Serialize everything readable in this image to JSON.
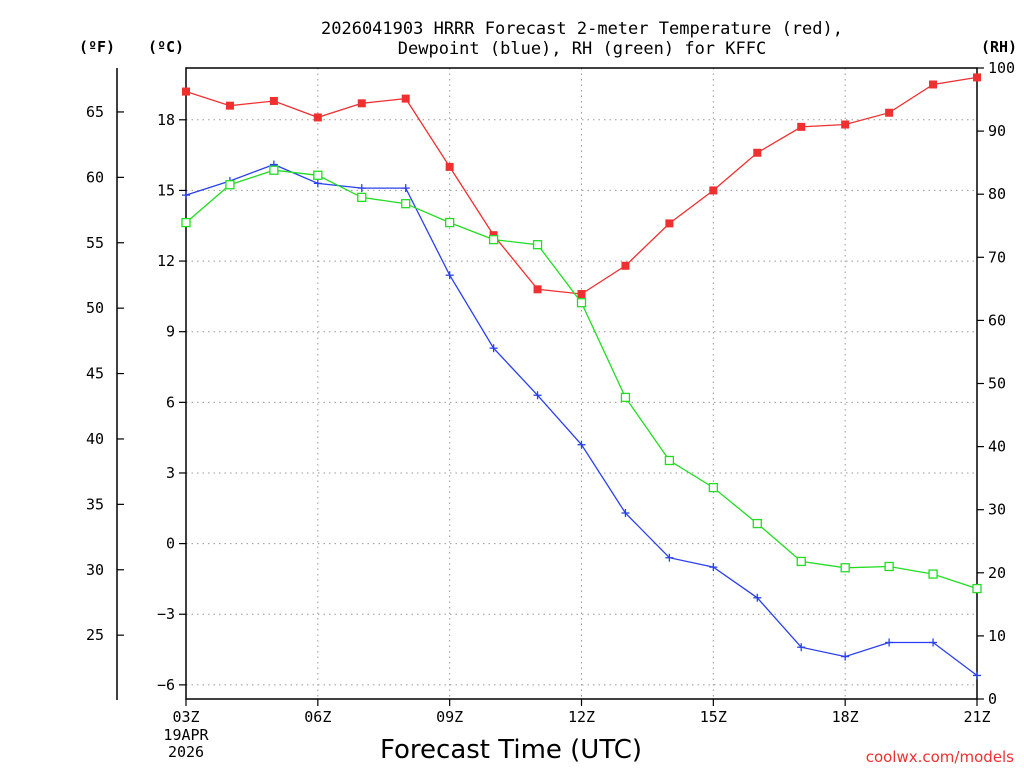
{
  "chart_data": {
    "type": "line",
    "title_line1": "2026041903 HRRR Forecast 2-meter Temperature (red),",
    "title_line2": "Dewpoint (blue), RH (green) for KFFC",
    "xlabel": "Forecast Time (UTC)",
    "date_line1": "19APR",
    "date_line2": "2026",
    "credit": "coolwx.com/models",
    "units": {
      "fahrenheit": "(ºF)",
      "celsius": "(ºC)",
      "rh": "(RH)"
    },
    "x_hours": [
      3,
      4,
      5,
      6,
      7,
      8,
      9,
      10,
      11,
      12,
      13,
      14,
      15,
      16,
      17,
      18,
      19,
      20,
      21
    ],
    "x_ticks": [
      {
        "hour": 3,
        "label": "03Z"
      },
      {
        "hour": 6,
        "label": "06Z"
      },
      {
        "hour": 9,
        "label": "09Z"
      },
      {
        "hour": 12,
        "label": "12Z"
      },
      {
        "hour": 15,
        "label": "15Z"
      },
      {
        "hour": 18,
        "label": "18Z"
      },
      {
        "hour": 21,
        "label": "21Z"
      }
    ],
    "celsius_axis": {
      "range": [
        -6.6,
        20.2
      ],
      "ticks": [
        "-6",
        "-3",
        "0",
        "3",
        "6",
        "9",
        "12",
        "15",
        "18"
      ]
    },
    "fahrenheit_ticks": [
      "25",
      "30",
      "35",
      "40",
      "45",
      "50",
      "55",
      "60",
      "65"
    ],
    "rh_axis": {
      "range": [
        0,
        100
      ],
      "ticks": [
        "0",
        "10",
        "20",
        "30",
        "40",
        "50",
        "60",
        "70",
        "80",
        "90",
        "100"
      ]
    },
    "series": [
      {
        "name": "Temperature",
        "unit": "C",
        "color": "#ef3030",
        "marker": "filled-square",
        "values": [
          19.2,
          18.6,
          18.8,
          18.1,
          18.7,
          18.9,
          16.0,
          13.1,
          10.8,
          10.6,
          11.8,
          13.6,
          15.0,
          16.6,
          17.7,
          17.8,
          18.3,
          19.5,
          19.8
        ]
      },
      {
        "name": "Dewpoint",
        "unit": "C",
        "color": "#2a40ee",
        "marker": "plus",
        "values": [
          14.8,
          15.4,
          16.1,
          15.3,
          15.1,
          15.1,
          11.4,
          8.3,
          6.3,
          4.2,
          1.3,
          -0.6,
          -1.0,
          -2.3,
          -4.4,
          -4.8,
          -4.2,
          -4.2,
          -5.6
        ]
      },
      {
        "name": "RH",
        "unit": "%",
        "color": "#22dd22",
        "marker": "open-square",
        "values": [
          75.5,
          81.5,
          83.8,
          83.0,
          79.5,
          78.5,
          75.5,
          72.8,
          72.0,
          62.8,
          47.8,
          37.8,
          33.5,
          27.8,
          21.8,
          20.8,
          21.0,
          19.8,
          17.5
        ]
      }
    ]
  }
}
